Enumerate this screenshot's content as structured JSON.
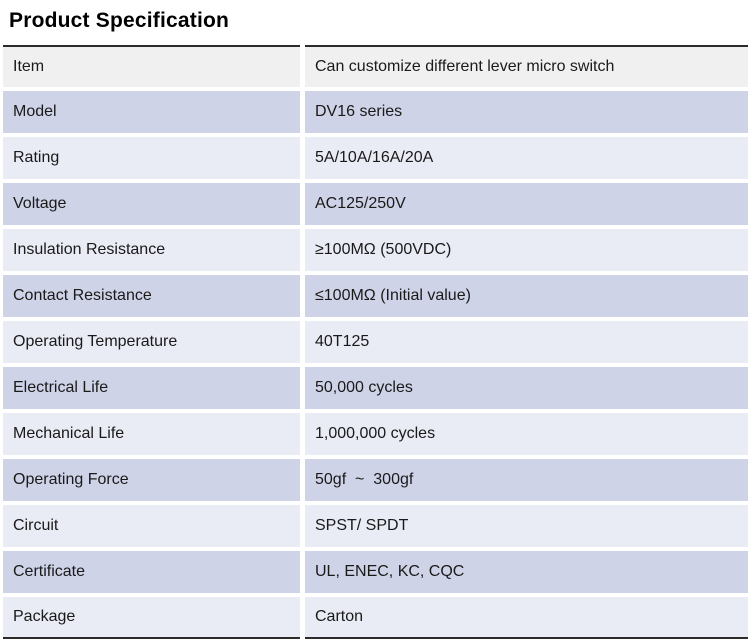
{
  "page_title": "Product Specification",
  "table": {
    "header": {
      "label": "Item",
      "value": "Can customize different lever micro switch"
    },
    "rows": [
      {
        "label": "Model",
        "value": "DV16 series"
      },
      {
        "label": "Rating",
        "value": "5A/10A/16A/20A"
      },
      {
        "label": "Voltage",
        "value": "AC125/250V"
      },
      {
        "label": "Insulation Resistance",
        "value": "≥100MΩ (500VDC)"
      },
      {
        "label": "Contact Resistance",
        "value": "≤100MΩ (Initial value)"
      },
      {
        "label": "Operating Temperature",
        "value": "40T125"
      },
      {
        "label": "Electrical Life",
        "value": "50,000 cycles"
      },
      {
        "label": "Mechanical Life",
        "value": "1,000,000 cycles"
      },
      {
        "label": "Operating Force",
        "value": "50gf  ~  300gf"
      },
      {
        "label": "Circuit",
        "value": "SPST/ SPDT"
      },
      {
        "label": "Certificate",
        "value": "UL, ENEC, KC, CQC"
      },
      {
        "label": "Package",
        "value": "Carton"
      }
    ]
  },
  "colors": {
    "header_row_bg": "#f0f0f0",
    "row_dark_lavender": "#cfd3e8",
    "row_light_lavender": "#e9ebf5",
    "table_rule": "#2b2b2b",
    "text": "#1a1a1a"
  }
}
